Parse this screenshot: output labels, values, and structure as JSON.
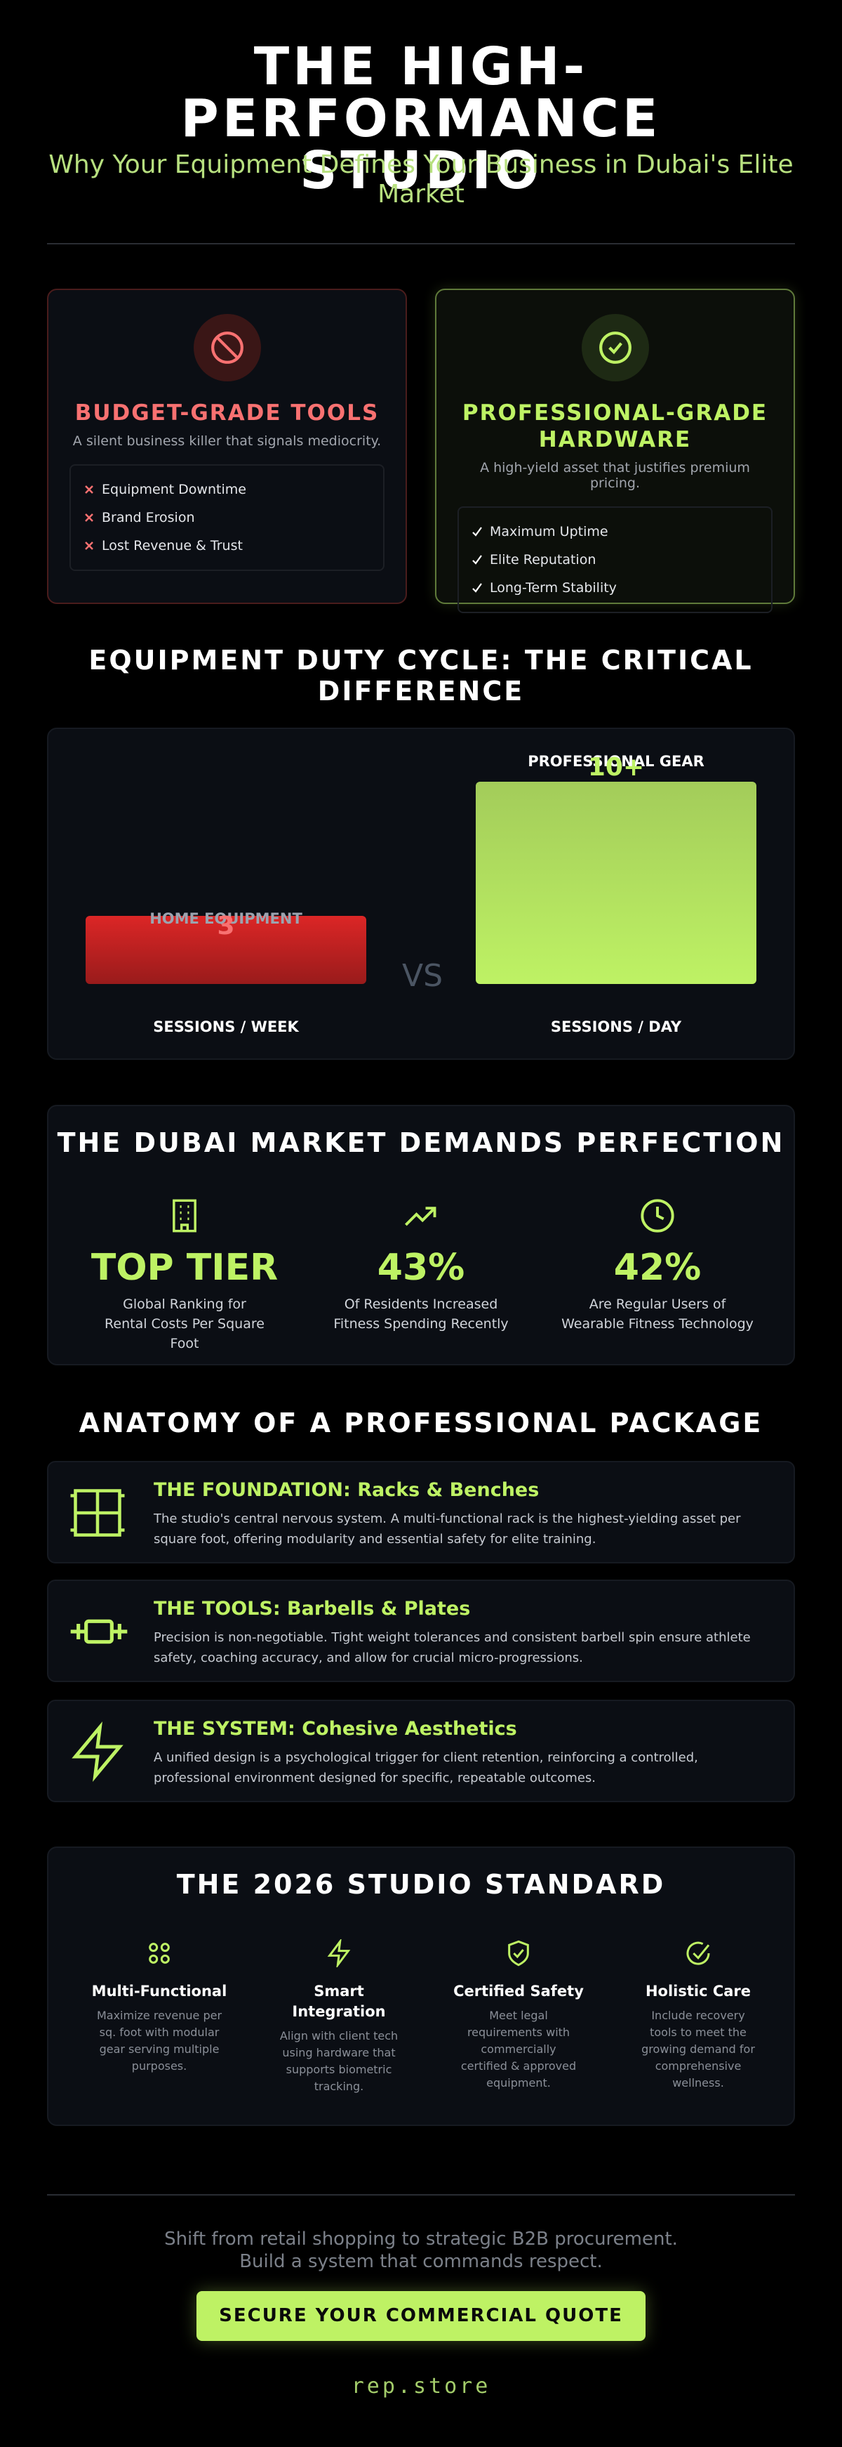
{
  "header": {
    "title": "THE HIGH-PERFORMANCE STUDIO",
    "subtitle": "Why Your Equipment Defines Your Business in Dubai's Elite Market"
  },
  "comparison": {
    "cards": [
      {
        "title": "BUDGET-GRADE TOOLS",
        "subtitle": "A silent business killer that signals mediocrity.",
        "items": [
          "Equipment Downtime",
          "Brand Erosion",
          "Lost Revenue & Trust"
        ]
      },
      {
        "title": "PROFESSIONAL-GRADE HARDWARE",
        "subtitle": "A high-yield asset that justifies premium pricing.",
        "items": [
          "Maximum Uptime",
          "Elite Reputation",
          "Long-Term Stability"
        ]
      }
    ]
  },
  "duty_cycle": {
    "title": "EQUIPMENT DUTY CYCLE: THE CRITICAL DIFFERENCE",
    "left": {
      "label": "HOME EQUIPMENT",
      "value": "3",
      "unit": "SESSIONS / WEEK"
    },
    "vs": "VS",
    "right": {
      "label": "PROFESSIONAL GEAR",
      "value": "10+",
      "unit": "SESSIONS / DAY"
    }
  },
  "market": {
    "title": "THE DUBAI MARKET DEMANDS PERFECTION",
    "stats": [
      {
        "value": "TOP TIER",
        "label": "Global Ranking for Rental Costs Per Square Foot"
      },
      {
        "value": "43%",
        "label": "Of Residents Increased Fitness Spending Recently"
      },
      {
        "value": "42%",
        "label": "Are Regular Users of Wearable Fitness Technology"
      }
    ]
  },
  "anatomy": {
    "title": "ANATOMY OF A PROFESSIONAL PACKAGE",
    "items": [
      {
        "title": "THE FOUNDATION: Racks & Benches",
        "text": "The studio's central nervous system. A multi-functional rack is the highest-yielding asset per square foot, offering modularity and essential safety for elite training."
      },
      {
        "title": "THE TOOLS: Barbells & Plates",
        "text": "Precision is non-negotiable. Tight weight tolerances and consistent barbell spin ensure athlete safety, coaching accuracy, and allow for crucial micro-progressions."
      },
      {
        "title": "THE SYSTEM: Cohesive Aesthetics",
        "text": "A unified design is a psychological trigger for client retention, reinforcing a controlled, professional environment designed for specific, repeatable outcomes."
      }
    ]
  },
  "standard": {
    "title": "THE 2026 STUDIO STANDARD",
    "items": [
      {
        "title": "Multi-Functional",
        "text": "Maximize revenue per sq. foot with modular gear serving multiple purposes."
      },
      {
        "title": "Smart Integration",
        "text": "Align with client tech using hardware that supports biometric tracking."
      },
      {
        "title": "Certified Safety",
        "text": "Meet legal requirements with commercially certified & approved equipment."
      },
      {
        "title": "Holistic Care",
        "text": "Include recovery tools to meet the growing demand for comprehensive wellness."
      }
    ]
  },
  "footer": {
    "lines": [
      "Shift from retail shopping to strategic B2B procurement.",
      "Build a system that commands respect."
    ],
    "button": "SECURE YOUR COMMERCIAL QUOTE",
    "brand": "rep.store"
  }
}
